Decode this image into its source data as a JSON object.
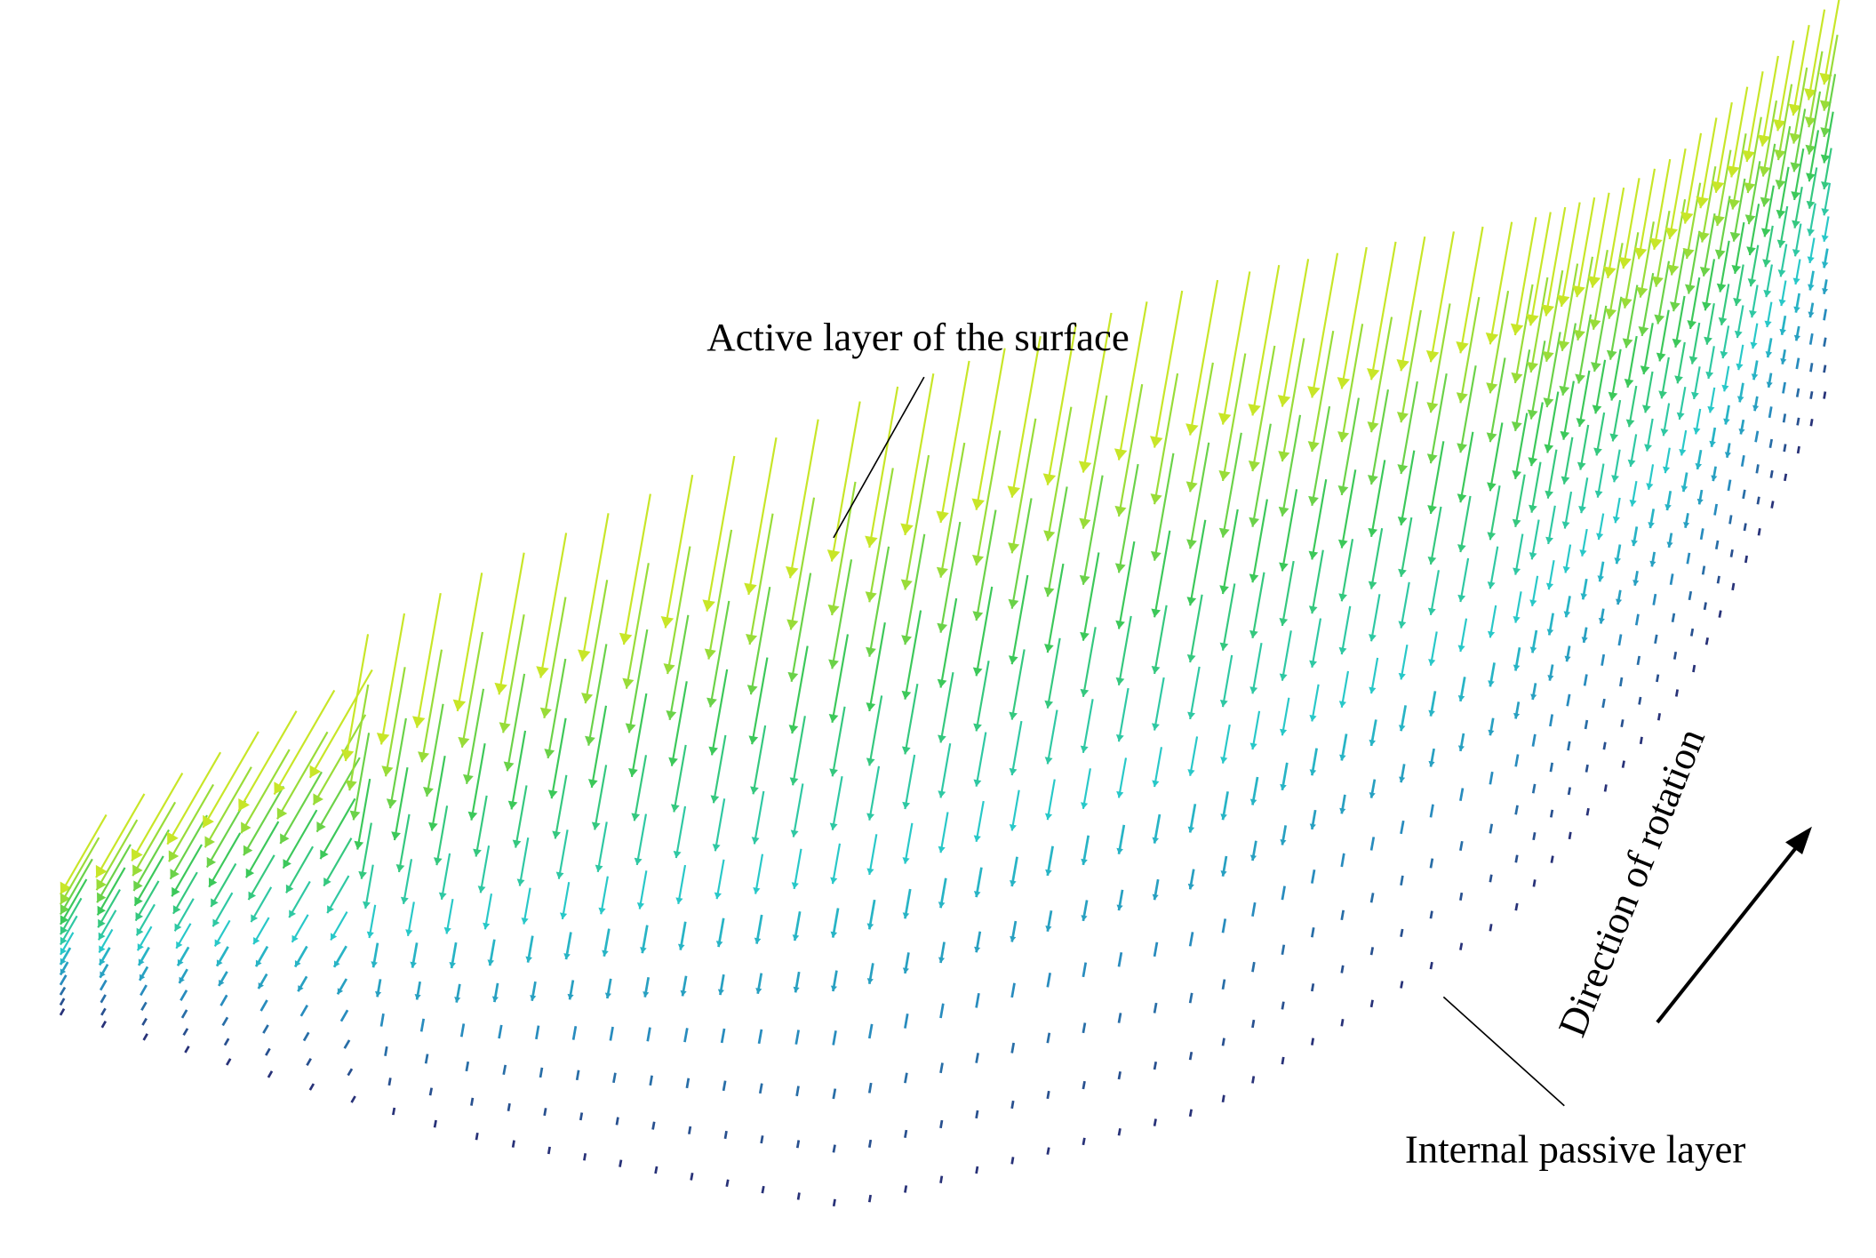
{
  "labels": {
    "active": "Active layer of the surface",
    "passive": "Internal passive layer",
    "rotation": "Direction of rotation"
  }
}
